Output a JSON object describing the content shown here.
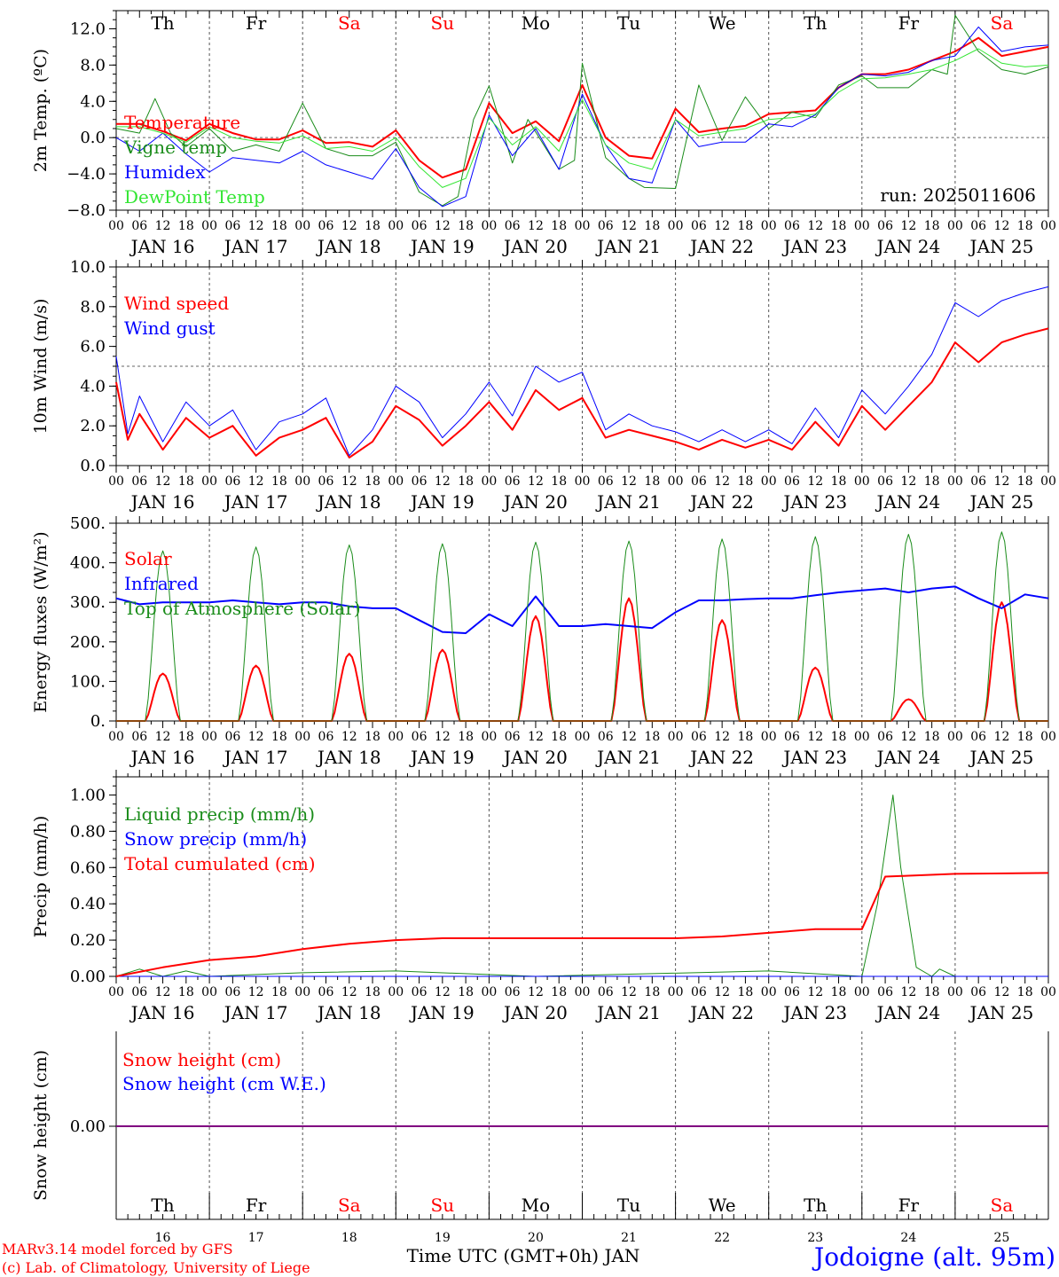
{
  "meta": {
    "run_label": "run: 2025011606",
    "xaxis_title": "Time UTC (GMT+0h) JAN",
    "location": "Jodoigne (alt. 95m)",
    "credit_line1": "MARv3.14 model forced by GFS",
    "credit_line2": "(c) Lab. of Climatology, University of Liege",
    "colors": {
      "red": "#ff0000",
      "green": "#1a8c1a",
      "blue": "#0000ff",
      "lightgreen": "#33e633",
      "grid": "#555555",
      "ref": "#666666"
    }
  },
  "time_axis": {
    "hour_ticks": [
      "00",
      "06",
      "12",
      "18"
    ],
    "final_tick": "00",
    "date_labels": [
      "JAN 16",
      "JAN 17",
      "JAN 18",
      "JAN 19",
      "JAN 20",
      "JAN 21",
      "JAN 22",
      "JAN 23",
      "JAN 24",
      "JAN 25"
    ],
    "weekdays": [
      "Th",
      "Fr",
      "Sa",
      "Su",
      "Mo",
      "Tu",
      "We",
      "Th",
      "Fr",
      "Sa"
    ],
    "weekday_colors": [
      "#000000",
      "#000000",
      "#ff0000",
      "#ff0000",
      "#000000",
      "#000000",
      "#000000",
      "#000000",
      "#000000",
      "#ff0000"
    ],
    "day_numbers": [
      "16",
      "17",
      "18",
      "19",
      "20",
      "21",
      "22",
      "23",
      "24",
      "25"
    ]
  },
  "chart_data": [
    {
      "type": "line",
      "ylabel": "2m Temp. (ºC)",
      "ylim": [
        -8,
        14
      ],
      "yticks": [
        "12.0",
        "8.0",
        "4.0",
        "0.0",
        "−4.0",
        "−8.0"
      ],
      "ytick_values": [
        12,
        8,
        4,
        0,
        -4,
        -8
      ],
      "reference_line": 0,
      "x_unit": "hours since JAN 16 00 UTC",
      "series": [
        {
          "name": "Temperature",
          "color": "#ff0000",
          "width": 2,
          "x": [
            0,
            6,
            12,
            18,
            24,
            30,
            36,
            42,
            48,
            54,
            60,
            66,
            72,
            78,
            84,
            90,
            96,
            102,
            108,
            114,
            120,
            126,
            132,
            138,
            144,
            150,
            156,
            162,
            168,
            174,
            180,
            186,
            192,
            198,
            204,
            210,
            216,
            222,
            228,
            234,
            240
          ],
          "y": [
            1.5,
            1.5,
            0.7,
            -0.3,
            1.5,
            0.5,
            -0.2,
            -0.2,
            0.8,
            -0.6,
            -0.5,
            -1.0,
            0.8,
            -2.5,
            -4.4,
            -3.5,
            3.8,
            0.5,
            1.8,
            -0.4,
            5.8,
            0.0,
            -2.0,
            -2.3,
            3.2,
            0.6,
            1.0,
            1.3,
            2.6,
            2.8,
            3.0,
            5.5,
            7.0,
            7.0,
            7.5,
            8.5,
            9.5,
            11.0,
            9.0,
            9.5,
            10.0
          ]
        },
        {
          "name": "Vigne temp",
          "color": "#1a8c1a",
          "width": 1,
          "x": [
            0,
            6,
            10,
            14,
            18,
            24,
            30,
            36,
            42,
            48,
            54,
            60,
            66,
            72,
            78,
            84,
            88,
            92,
            96,
            102,
            106,
            114,
            118,
            120,
            126,
            132,
            136,
            144,
            150,
            156,
            162,
            168,
            174,
            180,
            186,
            192,
            196,
            204,
            210,
            214,
            216,
            222,
            228,
            234,
            240
          ],
          "y": [
            1.0,
            0.5,
            4.3,
            0.5,
            -1.0,
            1.0,
            -1.5,
            -0.8,
            -1.5,
            3.8,
            -1.2,
            -2.0,
            -2.0,
            -0.5,
            -6.0,
            -7.5,
            -6.5,
            2.0,
            5.7,
            -2.8,
            2.0,
            -3.5,
            -2.5,
            8.2,
            -2.2,
            -4.5,
            -5.5,
            -5.6,
            5.8,
            -0.3,
            4.5,
            1.0,
            2.8,
            2.2,
            5.8,
            6.8,
            5.5,
            5.5,
            7.5,
            7.0,
            13.5,
            9.5,
            7.5,
            7.0,
            7.8
          ]
        },
        {
          "name": "Humidex",
          "color": "#0000ff",
          "width": 1,
          "x": [
            0,
            6,
            12,
            18,
            24,
            30,
            36,
            42,
            48,
            54,
            60,
            66,
            72,
            78,
            84,
            90,
            96,
            102,
            108,
            114,
            120,
            126,
            132,
            138,
            144,
            150,
            156,
            162,
            168,
            174,
            180,
            186,
            192,
            198,
            204,
            210,
            216,
            222,
            228,
            234,
            240
          ],
          "y": [
            0.0,
            -1.5,
            0.5,
            -1.8,
            -3.8,
            -2.2,
            -2.5,
            -2.8,
            -1.5,
            -3.0,
            -3.8,
            -4.6,
            -1.2,
            -5.5,
            -7.6,
            -6.5,
            2.5,
            -2.0,
            1.0,
            -3.5,
            4.8,
            -0.8,
            -4.5,
            -5.0,
            2.0,
            -1.0,
            -0.5,
            -0.5,
            1.5,
            1.2,
            2.5,
            5.5,
            7.0,
            6.8,
            7.2,
            8.5,
            9.0,
            12.2,
            9.5,
            10.0,
            10.2
          ]
        },
        {
          "name": "DewPoint Temp",
          "color": "#33e633",
          "width": 1,
          "x": [
            0,
            6,
            12,
            18,
            24,
            30,
            36,
            42,
            48,
            54,
            60,
            66,
            72,
            78,
            84,
            90,
            96,
            102,
            108,
            114,
            120,
            126,
            132,
            138,
            144,
            150,
            156,
            162,
            168,
            174,
            180,
            186,
            192,
            198,
            204,
            210,
            216,
            222,
            228,
            234,
            240
          ],
          "y": [
            1.2,
            1.2,
            0.5,
            -0.5,
            1.2,
            0.0,
            -0.4,
            -0.6,
            0.2,
            -1.2,
            -1.0,
            -1.5,
            0.0,
            -3.2,
            -5.5,
            -4.5,
            2.2,
            -0.8,
            1.2,
            -1.5,
            4.2,
            -0.8,
            -2.8,
            -3.5,
            2.0,
            0.2,
            0.6,
            1.0,
            2.0,
            2.2,
            2.6,
            5.0,
            6.5,
            6.6,
            7.0,
            7.5,
            8.5,
            9.8,
            8.2,
            7.8,
            8.0
          ]
        }
      ]
    },
    {
      "type": "line",
      "ylabel": "10m Wind (m/s)",
      "ylim": [
        0,
        10
      ],
      "yticks": [
        "10.0",
        "8.0",
        "6.0",
        "4.0",
        "2.0",
        "0.0"
      ],
      "ytick_values": [
        10,
        8,
        6,
        4,
        2,
        0
      ],
      "reference_line": 5,
      "series": [
        {
          "name": "Wind speed",
          "color": "#ff0000",
          "width": 2,
          "x": [
            0,
            3,
            6,
            12,
            18,
            24,
            30,
            36,
            42,
            48,
            54,
            60,
            66,
            72,
            78,
            84,
            90,
            96,
            102,
            108,
            114,
            120,
            126,
            132,
            138,
            144,
            150,
            156,
            162,
            168,
            174,
            180,
            186,
            192,
            198,
            204,
            210,
            216,
            222,
            228,
            234,
            240
          ],
          "y": [
            4.2,
            1.3,
            2.6,
            0.8,
            2.4,
            1.4,
            2.0,
            0.5,
            1.4,
            1.8,
            2.4,
            0.4,
            1.2,
            3.0,
            2.3,
            1.0,
            2.0,
            3.2,
            1.8,
            3.8,
            2.8,
            3.4,
            1.4,
            1.8,
            1.5,
            1.2,
            0.8,
            1.3,
            0.9,
            1.3,
            0.8,
            2.2,
            1.0,
            3.0,
            1.8,
            3.0,
            4.2,
            6.2,
            5.2,
            6.2,
            6.6,
            6.9
          ]
        },
        {
          "name": "Wind gust",
          "color": "#0000ff",
          "width": 1,
          "x": [
            0,
            3,
            6,
            12,
            18,
            24,
            30,
            36,
            42,
            48,
            54,
            60,
            66,
            72,
            78,
            84,
            90,
            96,
            102,
            108,
            114,
            120,
            126,
            132,
            138,
            144,
            150,
            156,
            162,
            168,
            174,
            180,
            186,
            192,
            198,
            204,
            210,
            216,
            222,
            228,
            234,
            240
          ],
          "y": [
            5.5,
            1.6,
            3.5,
            1.2,
            3.2,
            2.0,
            2.8,
            0.8,
            2.2,
            2.6,
            3.4,
            0.5,
            1.8,
            4.0,
            3.2,
            1.4,
            2.6,
            4.2,
            2.5,
            5.0,
            4.2,
            4.7,
            1.8,
            2.6,
            2.0,
            1.7,
            1.2,
            1.8,
            1.2,
            1.8,
            1.1,
            2.9,
            1.4,
            3.8,
            2.6,
            4.0,
            5.6,
            8.2,
            7.5,
            8.3,
            8.7,
            9.0
          ]
        }
      ]
    },
    {
      "type": "line",
      "ylabel": "Energy fluxes (W/m²)",
      "ylim": [
        0,
        500
      ],
      "yticks": [
        "500.",
        "400.",
        "300.",
        "200.",
        "100.",
        "0."
      ],
      "ytick_values": [
        500,
        400,
        300,
        200,
        100,
        0
      ],
      "series": [
        {
          "name": "Solar",
          "color": "#ff0000",
          "width": 2,
          "day_peaks": [
            120,
            140,
            170,
            180,
            265,
            310,
            255,
            135,
            55,
            300
          ]
        },
        {
          "name": "Infrared",
          "color": "#0000ff",
          "width": 2,
          "x": [
            0,
            6,
            12,
            18,
            24,
            30,
            36,
            42,
            48,
            54,
            60,
            66,
            72,
            78,
            84,
            90,
            96,
            102,
            108,
            114,
            120,
            126,
            132,
            138,
            144,
            150,
            156,
            162,
            168,
            174,
            180,
            186,
            192,
            198,
            204,
            210,
            216,
            222,
            228,
            234,
            240
          ],
          "y": [
            310,
            295,
            300,
            300,
            300,
            305,
            300,
            295,
            300,
            300,
            290,
            285,
            285,
            255,
            225,
            222,
            270,
            240,
            315,
            240,
            240,
            245,
            240,
            235,
            275,
            305,
            305,
            308,
            310,
            310,
            318,
            325,
            330,
            335,
            325,
            335,
            340,
            310,
            285,
            320,
            310
          ]
        },
        {
          "name": "Top of Atmosphere (Solar)",
          "color": "#1a8c1a",
          "width": 1,
          "day_peaks": [
            430,
            440,
            445,
            448,
            452,
            455,
            460,
            466,
            472,
            478
          ]
        }
      ]
    },
    {
      "type": "line",
      "ylabel": "Precip (mm/h)",
      "ylim": [
        0,
        1.1
      ],
      "yticks": [
        "1.00",
        "0.80",
        "0.60",
        "0.40",
        "0.20",
        "0.00"
      ],
      "ytick_values": [
        1.0,
        0.8,
        0.6,
        0.4,
        0.2,
        0.0
      ],
      "series": [
        {
          "name": "Liquid precip (mm/h)",
          "color": "#1a8c1a",
          "width": 1,
          "x": [
            0,
            6,
            12,
            18,
            24,
            48,
            72,
            108,
            168,
            192,
            196,
            200,
            202,
            206,
            210,
            212,
            216,
            240
          ],
          "y": [
            0.0,
            0.04,
            0.0,
            0.03,
            0.0,
            0.02,
            0.03,
            0.0,
            0.03,
            0.0,
            0.4,
            1.0,
            0.6,
            0.05,
            0.0,
            0.04,
            0.0,
            0.0
          ]
        },
        {
          "name": "Snow precip (mm/h)",
          "color": "#0000ff",
          "width": 1,
          "x": [
            0,
            240
          ],
          "y": [
            0.0,
            0.0
          ]
        },
        {
          "name": "Total cumulated (cm)",
          "color": "#ff0000",
          "width": 2,
          "x": [
            0,
            12,
            24,
            36,
            48,
            60,
            72,
            84,
            96,
            108,
            120,
            144,
            156,
            168,
            180,
            192,
            198,
            204,
            216,
            240
          ],
          "y": [
            0.0,
            0.05,
            0.09,
            0.11,
            0.15,
            0.18,
            0.2,
            0.21,
            0.21,
            0.21,
            0.21,
            0.21,
            0.22,
            0.24,
            0.26,
            0.26,
            0.55,
            0.555,
            0.565,
            0.57
          ]
        }
      ]
    },
    {
      "type": "line",
      "ylabel": "Snow height (cm)",
      "yticks": [
        "0.00"
      ],
      "series": [
        {
          "name": "Snow height (cm)",
          "color": "#ff0000",
          "width": 2,
          "x": [
            0,
            240
          ],
          "y": [
            0,
            0
          ]
        },
        {
          "name": "Snow height (cm W.E.)",
          "color": "#0000ff",
          "width": 1,
          "x": [
            0,
            240
          ],
          "y": [
            0,
            0
          ]
        }
      ]
    }
  ]
}
